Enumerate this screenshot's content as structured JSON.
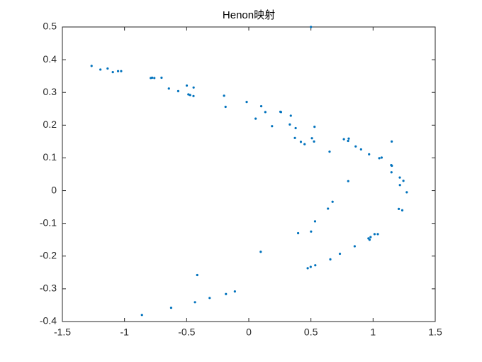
{
  "chart_data": {
    "type": "scatter",
    "title": "Henon映射",
    "x": [
      0.5,
      1.15,
      -0.702,
      0.656,
      0.187,
      1.148,
      -0.789,
      0.474,
      0.449,
      0.86,
      0.1,
      1.244,
      -1.136,
      -0.433,
      0.397,
      0.65,
      0.529,
      0.804,
      0.254,
      1.151,
      -0.778,
      0.498,
      0.419,
      0.903,
      -0.017,
      1.271,
      -1.265,
      -0.86,
      -0.415,
      0.501,
      0.525,
      0.765,
      0.338,
      1.069,
      -0.499,
      0.972,
      -0.472,
      0.98,
      -0.486,
      0.963,
      -0.445,
      1.012,
      -0.568,
      0.852,
      -0.187,
      1.207,
      -1.094,
      -0.315,
      0.533,
      0.508,
      0.799,
      0.259,
      1.146,
      -0.76,
      0.535,
      0.371,
      0.968,
      -0.199,
      1.235,
      -1.194,
      -0.625,
      0.096,
      0.8,
      0.133,
      1.215,
      -1.027,
      -0.112,
      0.674,
      0.33,
      1.05,
      -0.444,
      1.038,
      -0.643,
      0.733,
      0.055,
      1.216,
      -1.052,
      -0.184,
      0.637,
      0.377
    ],
    "series": [
      {
        "color": "#0072bd",
        "values": [
          0.5,
          0.15,
          0.345,
          -0.21,
          0.197,
          0.056,
          0.344,
          -0.237,
          0.142,
          0.135,
          0.258,
          0.03,
          0.373,
          -0.341,
          -0.13,
          0.119,
          0.195,
          0.159,
          0.241,
          0.076,
          0.345,
          -0.233,
          0.149,
          0.126,
          0.271,
          -0.005,
          0.381,
          -0.38,
          -0.258,
          -0.125,
          0.15,
          0.157,
          0.229,
          0.101,
          0.321,
          -0.15,
          0.292,
          -0.142,
          0.294,
          -0.146,
          0.289,
          -0.133,
          0.304,
          -0.17,
          0.256,
          -0.056,
          0.362,
          -0.328,
          -0.094,
          0.16,
          0.152,
          0.24,
          0.078,
          0.344,
          -0.228,
          0.161,
          0.111,
          0.29,
          -0.06,
          0.37,
          -0.358,
          -0.187,
          0.029,
          0.24,
          0.04,
          0.365,
          -0.308,
          -0.034,
          0.202,
          0.099,
          0.315,
          -0.133,
          0.312,
          -0.193,
          0.22,
          0.017,
          0.365,
          -0.316,
          -0.055,
          0.191
        ]
      }
    ],
    "xlim": [
      -1.5,
      1.5
    ],
    "xticks": [
      -1.5,
      -1,
      -0.5,
      0,
      0.5,
      1,
      1.5
    ],
    "ylim": [
      -0.4,
      0.5
    ],
    "yticks": [
      -0.4,
      -0.3,
      -0.2,
      -0.1,
      0,
      0.1,
      0.2,
      0.3,
      0.4,
      0.5
    ],
    "grid": false
  }
}
